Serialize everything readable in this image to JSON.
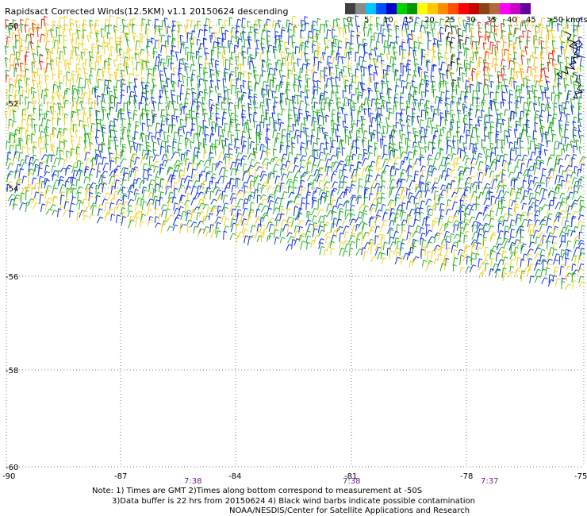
{
  "header": {
    "title": "Rapidsact Corrected Winds(12.5KM) v1.1 20150624 descending"
  },
  "legend": {
    "labels": [
      "0",
      "5",
      "10",
      "15",
      "20",
      "25",
      "30",
      "35",
      "40",
      "45",
      ">50 knots"
    ],
    "colors": [
      "#404040",
      "#8a8a8a",
      "#00c8ff",
      "#0050ff",
      "#0000c8",
      "#00d200",
      "#009600",
      "#ffff00",
      "#ffc800",
      "#ff8c00",
      "#ff5000",
      "#ff0000",
      "#c80000",
      "#8b4513",
      "#b06a3b",
      "#ff00ff",
      "#c800c8",
      "#6400a0"
    ]
  },
  "map": {
    "lat_labels": [
      "-50",
      "-52",
      "-54",
      "-56",
      "-58",
      "-60"
    ],
    "lon_labels": [
      "-90",
      "-87",
      "-84",
      "-81",
      "-78",
      "-75"
    ],
    "time_labels": [
      "7:38",
      "7:38",
      "7:37"
    ]
  },
  "notes": {
    "line1": "Note: 1) Times are GMT 2)Times along bottom correspond to measurement at -50S",
    "line2": "3)Data buffer is 22 hrs from 20150624 4) Black wind barbs indicate possible contamination",
    "line3": "NOAA/NESDIS/Center for Satellite Applications and Research"
  }
}
